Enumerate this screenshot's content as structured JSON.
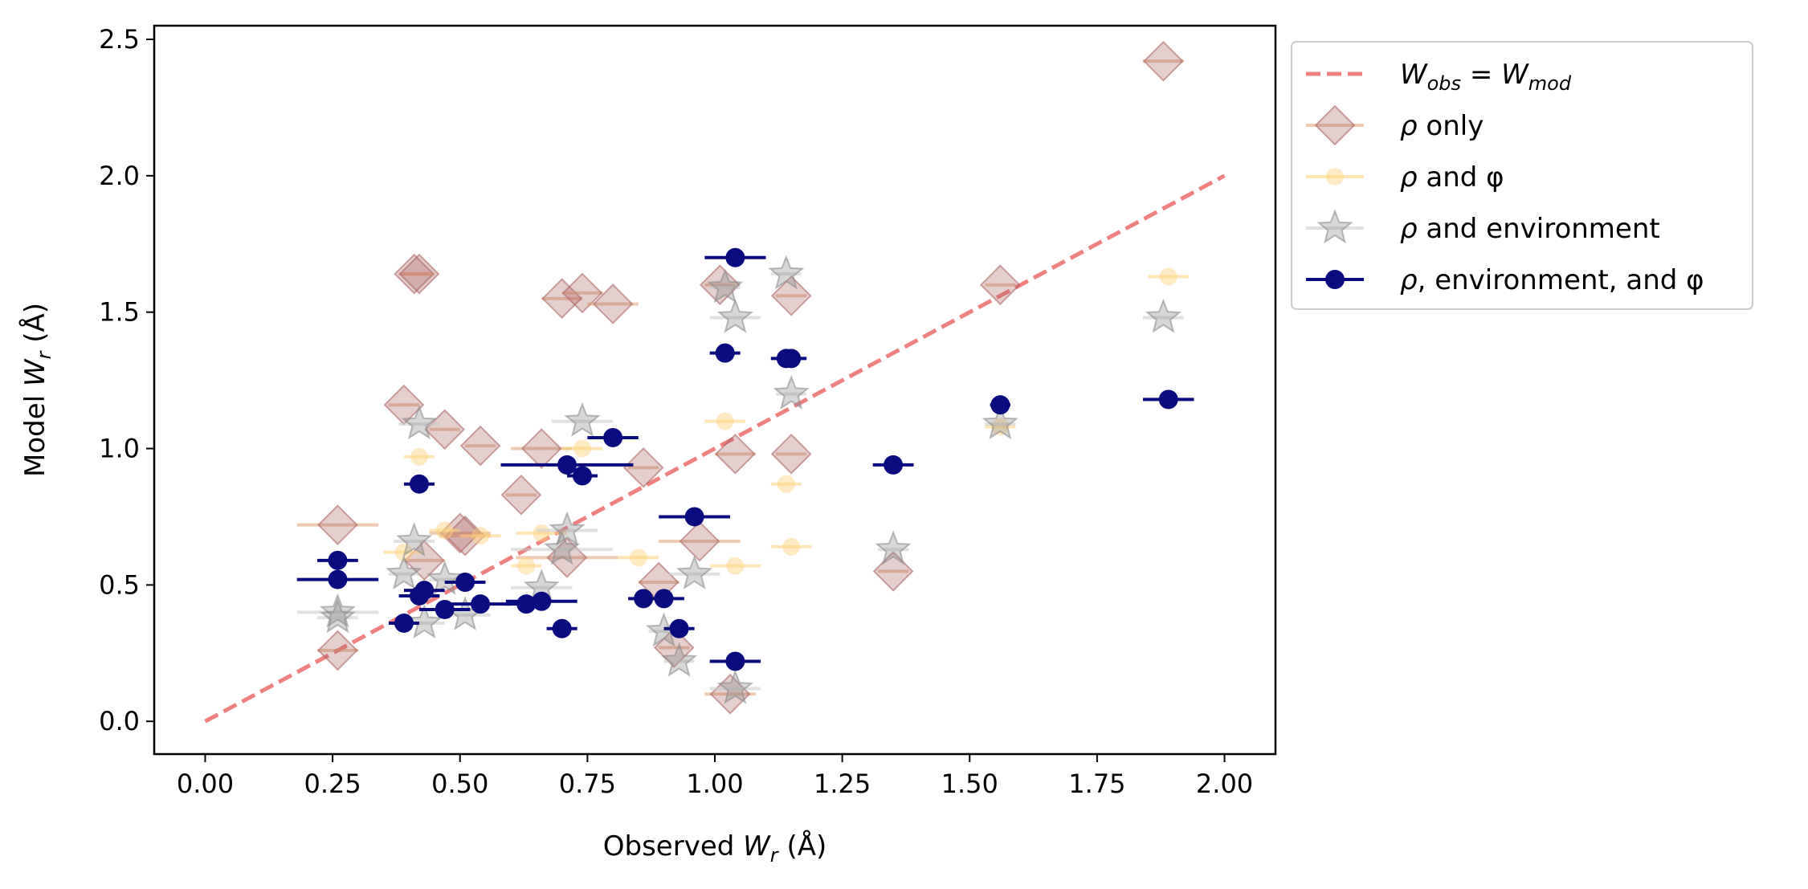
{
  "chart_data": {
    "type": "scatter",
    "title": "",
    "xlabel": "Observed W",
    "xlabel_sub": "r",
    "xlabel_unit": " (Å)",
    "ylabel": "Model W",
    "ylabel_sub": "r",
    "ylabel_unit": " (Å)",
    "xlim": [
      -0.1,
      2.1
    ],
    "ylim": [
      -0.12,
      2.55
    ],
    "xticks": [
      "0.00",
      "0.25",
      "0.50",
      "0.75",
      "1.00",
      "1.25",
      "1.50",
      "1.75",
      "2.00"
    ],
    "yticks": [
      "0.0",
      "0.5",
      "1.0",
      "1.5",
      "2.0",
      "2.5"
    ],
    "grid": false,
    "legend_position": "outside-upper-right",
    "reference_line": {
      "name": "W_obs = W_mod",
      "label_main": "W",
      "label_sub1": "obs",
      "label_eq": " = W",
      "label_sub2": "mod",
      "x": [
        0,
        2
      ],
      "y": [
        0,
        2
      ],
      "color": "#f08080",
      "style": "dashed"
    },
    "series": [
      {
        "name": "ρ only",
        "label_symbol": "ρ",
        "label_text": " only",
        "marker": "diamond",
        "color": "#a85c5c",
        "errbar_color": "#e0a070",
        "points": [
          {
            "x": 0.26,
            "y": 0.72,
            "xerr": 0.08
          },
          {
            "x": 0.26,
            "y": 0.26,
            "xerr": 0.04
          },
          {
            "x": 0.39,
            "y": 1.16,
            "xerr": 0.03
          },
          {
            "x": 0.41,
            "y": 1.64,
            "xerr": 0.03
          },
          {
            "x": 0.42,
            "y": 1.64,
            "xerr": 0.03
          },
          {
            "x": 0.43,
            "y": 0.59,
            "xerr": 0.04
          },
          {
            "x": 0.47,
            "y": 1.07,
            "xerr": 0.03
          },
          {
            "x": 0.5,
            "y": 0.69,
            "xerr": 0.06
          },
          {
            "x": 0.51,
            "y": 0.68,
            "xerr": 0.05
          },
          {
            "x": 0.54,
            "y": 1.01,
            "xerr": 0.03
          },
          {
            "x": 0.62,
            "y": 0.83,
            "xerr": 0.03
          },
          {
            "x": 0.66,
            "y": 1.0,
            "xerr": 0.06
          },
          {
            "x": 0.7,
            "y": 1.55,
            "xerr": 0.04
          },
          {
            "x": 0.71,
            "y": 0.6,
            "xerr": 0.1
          },
          {
            "x": 0.74,
            "y": 1.57,
            "xerr": 0.04
          },
          {
            "x": 0.8,
            "y": 1.53,
            "xerr": 0.05
          },
          {
            "x": 0.86,
            "y": 0.93,
            "xerr": 0.03
          },
          {
            "x": 0.89,
            "y": 0.51,
            "xerr": 0.04
          },
          {
            "x": 0.92,
            "y": 0.27,
            "xerr": 0.03
          },
          {
            "x": 0.97,
            "y": 0.66,
            "xerr": 0.08
          },
          {
            "x": 1.01,
            "y": 1.6,
            "xerr": 0.03
          },
          {
            "x": 1.04,
            "y": 0.98,
            "xerr": 0.04
          },
          {
            "x": 1.03,
            "y": 0.1,
            "xerr": 0.05
          },
          {
            "x": 1.15,
            "y": 1.56,
            "xerr": 0.03
          },
          {
            "x": 1.15,
            "y": 0.98,
            "xerr": 0.03
          },
          {
            "x": 1.35,
            "y": 0.55,
            "xerr": 0.03
          },
          {
            "x": 1.56,
            "y": 1.6,
            "xerr": 0.03
          },
          {
            "x": 1.88,
            "y": 2.42,
            "xerr": 0.04
          }
        ]
      },
      {
        "name": "ρ and φ",
        "label_symbol": "ρ",
        "label_text": " and φ",
        "marker": "circle",
        "color": "#ffd27a",
        "errbar_color": "#ffd27a",
        "points": [
          {
            "x": 0.39,
            "y": 0.62,
            "xerr": 0.04
          },
          {
            "x": 0.42,
            "y": 0.97,
            "xerr": 0.03
          },
          {
            "x": 0.47,
            "y": 0.7,
            "xerr": 0.03
          },
          {
            "x": 0.54,
            "y": 0.68,
            "xerr": 0.04
          },
          {
            "x": 0.63,
            "y": 0.57,
            "xerr": 0.03
          },
          {
            "x": 0.66,
            "y": 0.69,
            "xerr": 0.05
          },
          {
            "x": 0.74,
            "y": 1.0,
            "xerr": 0.04
          },
          {
            "x": 0.85,
            "y": 0.6,
            "xerr": 0.04
          },
          {
            "x": 1.02,
            "y": 1.1,
            "xerr": 0.04
          },
          {
            "x": 1.04,
            "y": 0.57,
            "xerr": 0.05
          },
          {
            "x": 1.14,
            "y": 0.87,
            "xerr": 0.03
          },
          {
            "x": 1.15,
            "y": 0.64,
            "xerr": 0.04
          },
          {
            "x": 1.56,
            "y": 1.08,
            "xerr": 0.03
          },
          {
            "x": 1.89,
            "y": 1.63,
            "xerr": 0.04
          }
        ]
      },
      {
        "name": "ρ and environment",
        "label_symbol": "ρ",
        "label_text": " and environment",
        "marker": "star",
        "color": "#8c8c8c",
        "errbar_color": "#c8c8c8",
        "points": [
          {
            "x": 0.26,
            "y": 0.4,
            "xerr": 0.08
          },
          {
            "x": 0.26,
            "y": 0.38,
            "xerr": 0.04
          },
          {
            "x": 0.39,
            "y": 0.54,
            "xerr": 0.03
          },
          {
            "x": 0.41,
            "y": 0.66,
            "xerr": 0.04
          },
          {
            "x": 0.42,
            "y": 1.09,
            "xerr": 0.04
          },
          {
            "x": 0.43,
            "y": 0.36,
            "xerr": 0.04
          },
          {
            "x": 0.47,
            "y": 0.52,
            "xerr": 0.03
          },
          {
            "x": 0.51,
            "y": 0.39,
            "xerr": 0.05
          },
          {
            "x": 0.66,
            "y": 0.49,
            "xerr": 0.06
          },
          {
            "x": 0.7,
            "y": 0.63,
            "xerr": 0.1
          },
          {
            "x": 0.71,
            "y": 0.7,
            "xerr": 0.06
          },
          {
            "x": 0.74,
            "y": 1.1,
            "xerr": 0.06
          },
          {
            "x": 0.9,
            "y": 0.33,
            "xerr": 0.03
          },
          {
            "x": 0.93,
            "y": 0.22,
            "xerr": 0.03
          },
          {
            "x": 0.96,
            "y": 0.54,
            "xerr": 0.05
          },
          {
            "x": 1.02,
            "y": 1.59,
            "xerr": 0.03
          },
          {
            "x": 1.04,
            "y": 1.48,
            "xerr": 0.05
          },
          {
            "x": 1.04,
            "y": 0.12,
            "xerr": 0.05
          },
          {
            "x": 1.14,
            "y": 1.64,
            "xerr": 0.03
          },
          {
            "x": 1.15,
            "y": 1.2,
            "xerr": 0.03
          },
          {
            "x": 1.35,
            "y": 0.63,
            "xerr": 0.03
          },
          {
            "x": 1.56,
            "y": 1.09,
            "xerr": 0.03
          },
          {
            "x": 1.88,
            "y": 1.48,
            "xerr": 0.04
          }
        ]
      },
      {
        "name": "ρ, environment, and φ",
        "label_symbol": "ρ",
        "label_text": ", environment, and φ",
        "marker": "circle",
        "color": "#0b0b80",
        "errbar_color": "#0b0b80",
        "points": [
          {
            "x": 0.26,
            "y": 0.59,
            "xerr": 0.04
          },
          {
            "x": 0.26,
            "y": 0.52,
            "xerr": 0.08
          },
          {
            "x": 0.39,
            "y": 0.36,
            "xerr": 0.03
          },
          {
            "x": 0.42,
            "y": 0.87,
            "xerr": 0.03
          },
          {
            "x": 0.42,
            "y": 0.46,
            "xerr": 0.04
          },
          {
            "x": 0.43,
            "y": 0.48,
            "xerr": 0.04
          },
          {
            "x": 0.47,
            "y": 0.41,
            "xerr": 0.05
          },
          {
            "x": 0.51,
            "y": 0.51,
            "xerr": 0.04
          },
          {
            "x": 0.54,
            "y": 0.43,
            "xerr": 0.06
          },
          {
            "x": 0.63,
            "y": 0.43,
            "xerr": 0.04
          },
          {
            "x": 0.66,
            "y": 0.44,
            "xerr": 0.07
          },
          {
            "x": 0.7,
            "y": 0.34,
            "xerr": 0.03
          },
          {
            "x": 0.71,
            "y": 0.94,
            "xerr": 0.13
          },
          {
            "x": 0.74,
            "y": 0.9,
            "xerr": 0.03
          },
          {
            "x": 0.8,
            "y": 1.04,
            "xerr": 0.05
          },
          {
            "x": 0.86,
            "y": 0.45,
            "xerr": 0.03
          },
          {
            "x": 0.9,
            "y": 0.45,
            "xerr": 0.04
          },
          {
            "x": 0.93,
            "y": 0.34,
            "xerr": 0.03
          },
          {
            "x": 0.96,
            "y": 0.75,
            "xerr": 0.07
          },
          {
            "x": 1.02,
            "y": 1.35,
            "xerr": 0.03
          },
          {
            "x": 1.04,
            "y": 1.7,
            "xerr": 0.06
          },
          {
            "x": 1.04,
            "y": 0.22,
            "xerr": 0.05
          },
          {
            "x": 1.14,
            "y": 1.33,
            "xerr": 0.03
          },
          {
            "x": 1.15,
            "y": 1.33,
            "xerr": 0.03
          },
          {
            "x": 1.35,
            "y": 0.94,
            "xerr": 0.04
          },
          {
            "x": 1.56,
            "y": 1.16,
            "xerr": 0.02
          },
          {
            "x": 1.89,
            "y": 1.18,
            "xerr": 0.05
          }
        ]
      }
    ]
  }
}
